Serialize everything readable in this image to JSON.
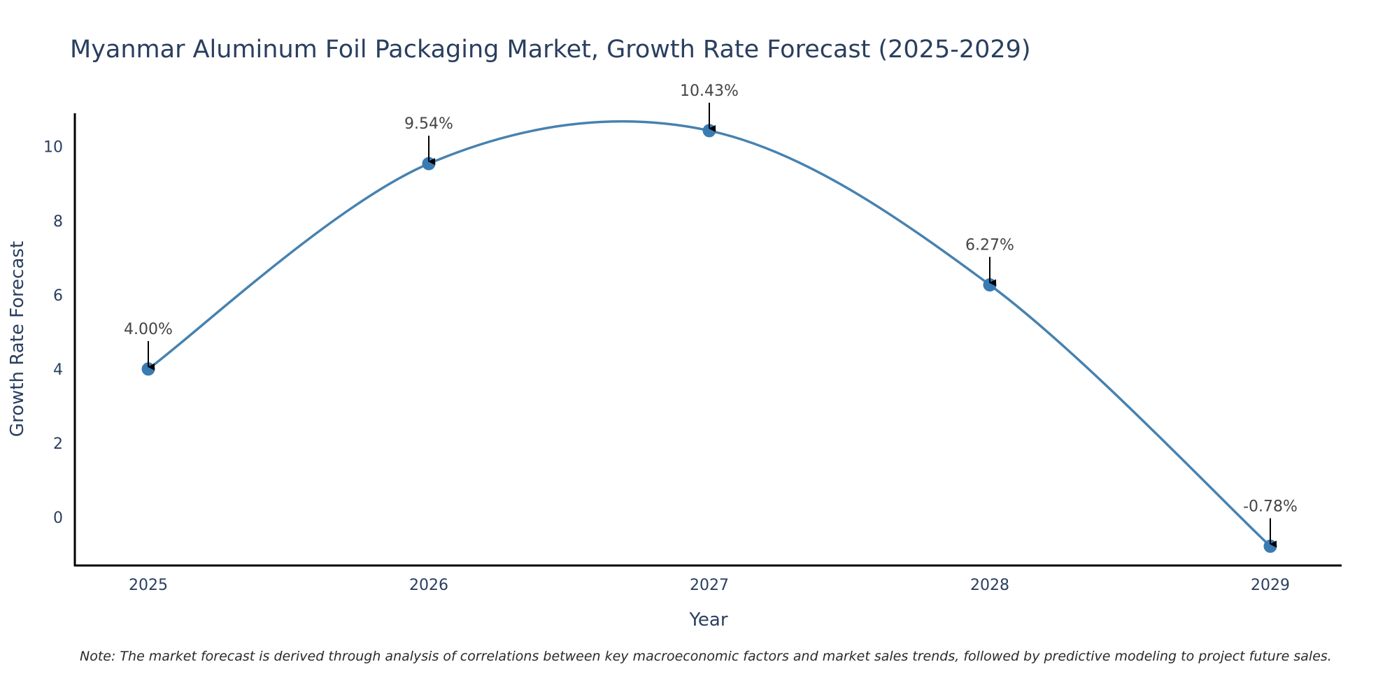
{
  "chart_data": {
    "type": "line",
    "title": "Myanmar Aluminum Foil Packaging Market, Growth Rate Forecast (2025-2029)",
    "xlabel": "Year",
    "ylabel": "Growth Rate Forecast",
    "categories": [
      "2025",
      "2026",
      "2027",
      "2028",
      "2029"
    ],
    "series": [
      {
        "name": "Growth Rate Forecast",
        "values": [
          4.0,
          9.54,
          10.43,
          6.27,
          -0.78
        ],
        "labels": [
          "4.00%",
          "9.54%",
          "10.43%",
          "6.27%",
          "-0.78%"
        ]
      }
    ],
    "ylim": [
      -1.3,
      10.9
    ],
    "yticks": [
      "0",
      "2",
      "4",
      "6",
      "8",
      "10"
    ],
    "line_shape": "spline",
    "grid": false,
    "legend": "none",
    "colors": {
      "line": "#4682b0",
      "marker": "#3b7bb3",
      "axis": "#000000",
      "arrow": "#000000"
    }
  },
  "note": "Note: The market forecast is derived through analysis of correlations between key macroeconomic factors and market sales trends, followed by predictive modeling to project future sales."
}
